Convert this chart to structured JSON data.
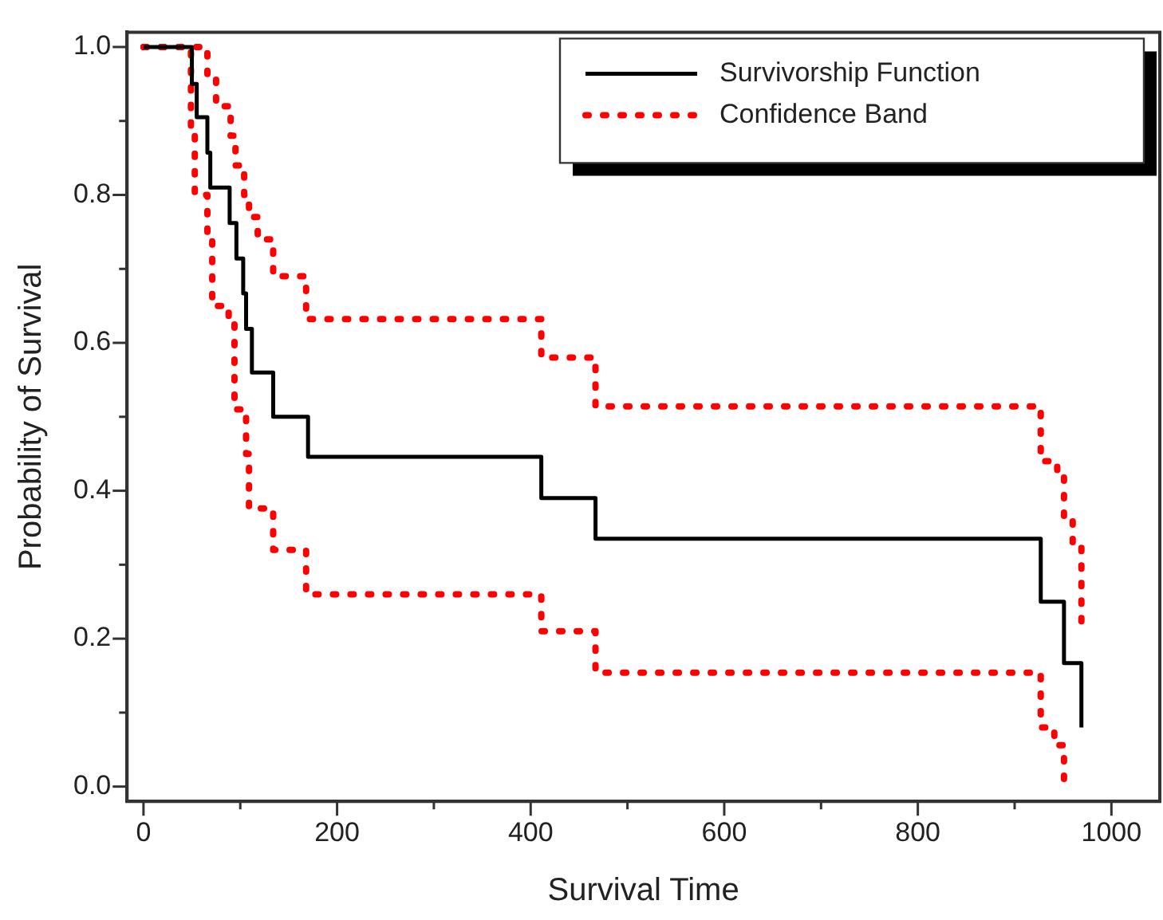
{
  "chart_data": {
    "type": "step",
    "xlabel": "Survival Time",
    "ylabel": "Probability of Survival",
    "xlim": [
      -17,
      1050
    ],
    "ylim": [
      -0.02,
      1.02
    ],
    "xticks": [
      0,
      {
        "value": 100,
        "label": null
      },
      200,
      {
        "value": 300,
        "label": null
      },
      400,
      {
        "value": 500,
        "label": null
      },
      600,
      {
        "value": 700,
        "label": null
      },
      800,
      {
        "value": 900,
        "label": null
      },
      1000
    ],
    "yticks": [
      {
        "value": 0,
        "label": "0.0"
      },
      {
        "value": 0.1,
        "label": null
      },
      0.2,
      {
        "value": 0.3,
        "label": null
      },
      0.4,
      {
        "value": 0.5,
        "label": null
      },
      0.6,
      {
        "value": 0.7,
        "label": null
      },
      0.8,
      {
        "value": 0.9,
        "label": null
      },
      {
        "value": 1,
        "label": "1.0"
      }
    ],
    "legend": "top right",
    "series": [
      {
        "name": "Survivorship Function",
        "color": "#000000",
        "line_style": "solid",
        "x": [
          0,
          50,
          55,
          66,
          69,
          89,
          96,
          103,
          106,
          112,
          134,
          170,
          411,
          467,
          927,
          951,
          969
        ],
        "values": [
          1,
          0.95,
          0.905,
          0.857,
          0.81,
          0.762,
          0.714,
          0.667,
          0.619,
          0.56,
          0.5,
          0.446,
          0.39,
          0.335,
          0.25,
          0.167,
          0.08
        ]
      },
      {
        "name": "Confidence Band",
        "color": "#ff0000",
        "line_style": "dotted",
        "x": [
          0,
          66,
          75,
          90,
          95,
          104,
          109,
          118,
          134,
          168,
          411,
          467,
          927,
          944,
          951,
          960,
          969
        ],
        "values": [
          1,
          0.96,
          0.92,
          0.88,
          0.84,
          0.8,
          0.77,
          0.74,
          0.69,
          0.632,
          0.58,
          0.514,
          0.44,
          0.42,
          0.36,
          0.325,
          0.22
        ]
      },
      {
        "color": "#ff0000",
        "line_style": "dotted",
        "x": [
          0,
          49,
          53,
          66,
          71,
          88,
          94,
          106,
          109,
          134,
          168,
          411,
          467,
          927,
          941,
          951
        ],
        "values": [
          1,
          0.88,
          0.8,
          0.74,
          0.65,
          0.63,
          0.51,
          0.45,
          0.376,
          0.32,
          0.26,
          0.21,
          0.154,
          0.08,
          0.056,
          0
        ]
      }
    ]
  }
}
